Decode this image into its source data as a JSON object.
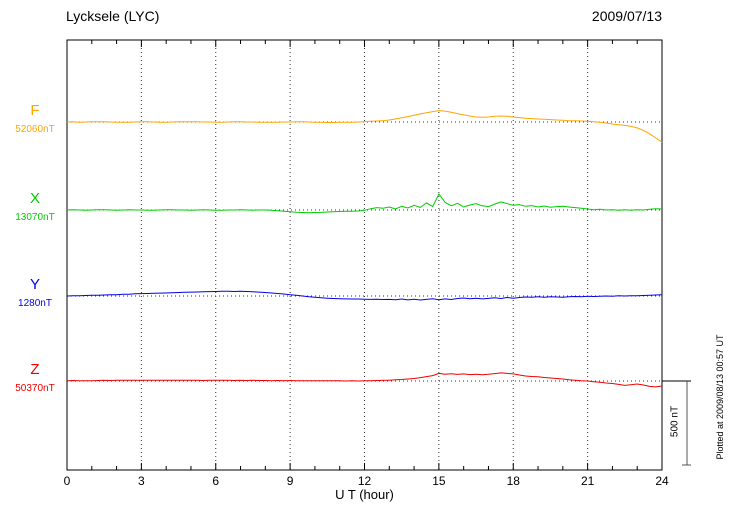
{
  "header": {
    "title": "Lycksele (LYC)",
    "date": "2009/07/13"
  },
  "footer": {
    "plotted_at": "Plotted at 2009/08/13 00:57 UT"
  },
  "chart_data": {
    "type": "line",
    "title": "Lycksele (LYC)",
    "date": "2009/07/13",
    "xlabel": "U T (hour)",
    "x_range": [
      0,
      24
    ],
    "x_ticks": [
      0,
      3,
      6,
      9,
      12,
      15,
      18,
      21,
      24
    ],
    "x_step_hours": 0.25,
    "grid": "dotted-vertical-at-3h-and-dotted-baselines",
    "scale_bar": {
      "label": "500 nT",
      "nT": 500
    },
    "series": [
      {
        "name": "F",
        "baseline_label": "52060nT",
        "color": "#FFA500",
        "offsets_nT": [
          0,
          1,
          -1,
          0,
          1,
          2,
          1,
          0,
          -1,
          -2,
          -1,
          0,
          1,
          1,
          0,
          -1,
          -1,
          0,
          1,
          2,
          2,
          1,
          0,
          0,
          -1,
          -1,
          0,
          1,
          1,
          0,
          0,
          -1,
          -2,
          -2,
          -1,
          0,
          0,
          1,
          1,
          0,
          -1,
          -2,
          -3,
          -3,
          -2,
          -2,
          -1,
          0,
          2,
          4,
          6,
          8,
          12,
          18,
          25,
          32,
          40,
          48,
          55,
          62,
          68,
          65,
          58,
          50,
          42,
          36,
          30,
          28,
          30,
          34,
          36,
          34,
          30,
          26,
          22,
          20,
          18,
          16,
          14,
          12,
          10,
          8,
          7,
          6,
          5,
          2,
          -2,
          -6,
          -12,
          -16,
          -20,
          -26,
          -35,
          -50,
          -70,
          -95,
          -120
        ]
      },
      {
        "name": "X",
        "baseline_label": "13070nT",
        "color": "#00CC00",
        "offsets_nT": [
          0,
          1,
          0,
          -1,
          0,
          1,
          1,
          0,
          -1,
          0,
          1,
          0,
          0,
          -1,
          -1,
          0,
          1,
          1,
          0,
          0,
          -1,
          0,
          1,
          0,
          -1,
          -1,
          0,
          0,
          1,
          0,
          -1,
          0,
          0,
          -2,
          -4,
          -7,
          -10,
          -13,
          -15,
          -16,
          -15,
          -14,
          -12,
          -10,
          -9,
          -8,
          -7,
          -6,
          -2,
          8,
          14,
          10,
          18,
          6,
          22,
          12,
          28,
          15,
          42,
          20,
          95,
          45,
          25,
          40,
          18,
          30,
          38,
          25,
          20,
          35,
          48,
          38,
          28,
          32,
          22,
          26,
          18,
          24,
          16,
          20,
          22,
          18,
          14,
          10,
          6,
          2,
          4,
          0,
          2,
          -2,
          1,
          -1,
          2,
          0,
          4,
          8,
          6
        ]
      },
      {
        "name": "Y",
        "baseline_label": "1280nT",
        "color": "#0000EE",
        "offsets_nT": [
          0,
          1,
          2,
          3,
          4,
          5,
          6,
          7,
          8,
          10,
          11,
          13,
          14,
          15,
          16,
          17,
          18,
          19,
          21,
          22,
          23,
          24,
          25,
          26,
          27,
          28,
          28,
          27,
          28,
          27,
          25,
          23,
          21,
          18,
          15,
          12,
          8,
          4,
          0,
          -4,
          -8,
          -11,
          -13,
          -15,
          -16,
          -17,
          -18,
          -18,
          -19,
          -20,
          -19,
          -21,
          -20,
          -22,
          -18,
          -23,
          -19,
          -24,
          -20,
          -16,
          -22,
          -17,
          -21,
          -15,
          -12,
          -16,
          -13,
          -17,
          -14,
          -10,
          -15,
          -9,
          -13,
          -9,
          -6,
          -8,
          -5,
          -7,
          -4,
          -6,
          -7,
          -5,
          -3,
          -4,
          -2,
          -3,
          -1,
          0,
          -1,
          1,
          0,
          2,
          1,
          3,
          4,
          6,
          7
        ]
      },
      {
        "name": "Z",
        "baseline_label": "50370nT",
        "color": "#EE0000",
        "offsets_nT": [
          2,
          3,
          2,
          1,
          2,
          3,
          4,
          3,
          4,
          4,
          5,
          4,
          5,
          4,
          5,
          5,
          4,
          5,
          4,
          4,
          5,
          4,
          3,
          4,
          5,
          4,
          4,
          3,
          4,
          3,
          4,
          3,
          3,
          2,
          3,
          2,
          3,
          2,
          2,
          1,
          2,
          1,
          2,
          1,
          1,
          0,
          1,
          0,
          1,
          2,
          3,
          4,
          5,
          7,
          9,
          12,
          15,
          20,
          26,
          32,
          45,
          40,
          43,
          39,
          42,
          38,
          40,
          37,
          40,
          44,
          48,
          45,
          42,
          36,
          30,
          27,
          25,
          21,
          18,
          15,
          12,
          8,
          5,
          2,
          0,
          -4,
          -8,
          -12,
          -15,
          -20,
          -26,
          -22,
          -18,
          -24,
          -32,
          -35,
          -30
        ]
      }
    ],
    "annotation": "Plotted at 2009/08/13 00:57 UT"
  }
}
